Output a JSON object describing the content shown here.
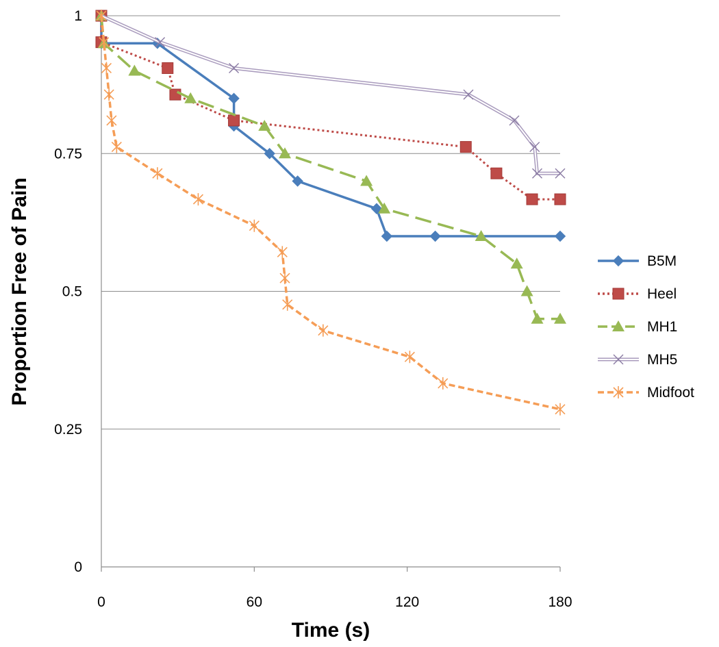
{
  "chart_data": {
    "type": "line",
    "xlabel": "Time (s)",
    "ylabel": "Proportion Free of Pain",
    "xlim": [
      0,
      180
    ],
    "ylim": [
      0,
      1
    ],
    "x_ticks": [
      "0",
      "60",
      "120",
      "180"
    ],
    "y_ticks": [
      "0",
      "0.25",
      "0.5",
      "0.75",
      "1"
    ],
    "grid": "horizontal",
    "legend_position": "right",
    "series": [
      {
        "name": "B5M",
        "color": "#4a7ebb",
        "line_style": "solid",
        "marker": "diamond",
        "points": [
          [
            0,
            1
          ],
          [
            0,
            0.95
          ],
          [
            22,
            0.95
          ],
          [
            52,
            0.85
          ],
          [
            52,
            0.8
          ],
          [
            66,
            0.75
          ],
          [
            77,
            0.7
          ],
          [
            108,
            0.65
          ],
          [
            112,
            0.6
          ],
          [
            131,
            0.6
          ],
          [
            180,
            0.6
          ]
        ]
      },
      {
        "name": "Heel",
        "color": "#be4b48",
        "line_style": "dotted",
        "marker": "square",
        "points": [
          [
            0,
            1
          ],
          [
            0,
            0.952
          ],
          [
            26,
            0.905
          ],
          [
            29,
            0.857
          ],
          [
            52,
            0.81
          ],
          [
            143,
            0.762
          ],
          [
            155,
            0.714
          ],
          [
            169,
            0.667
          ],
          [
            180,
            0.667
          ]
        ]
      },
      {
        "name": "MH1",
        "color": "#98b954",
        "line_style": "dashed",
        "marker": "triangle",
        "points": [
          [
            0,
            1
          ],
          [
            1,
            0.95
          ],
          [
            13,
            0.9
          ],
          [
            35,
            0.85
          ],
          [
            64,
            0.8
          ],
          [
            72,
            0.75
          ],
          [
            104,
            0.7
          ],
          [
            111,
            0.65
          ],
          [
            149,
            0.6
          ],
          [
            163,
            0.55
          ],
          [
            167,
            0.5
          ],
          [
            171,
            0.45
          ],
          [
            180,
            0.45
          ]
        ]
      },
      {
        "name": "MH5",
        "color": "#a99bbd",
        "line_style": "double",
        "marker": "x",
        "points": [
          [
            0,
            1
          ],
          [
            23,
            0.952
          ],
          [
            52,
            0.905
          ],
          [
            144,
            0.857
          ],
          [
            162,
            0.81
          ],
          [
            170,
            0.762
          ],
          [
            171,
            0.714
          ],
          [
            180,
            0.714
          ]
        ]
      },
      {
        "name": "Midfoot",
        "color": "#f59d56",
        "line_style": "short-dash",
        "marker": "star",
        "points": [
          [
            0,
            1
          ],
          [
            1,
            0.952
          ],
          [
            2,
            0.905
          ],
          [
            3,
            0.857
          ],
          [
            4,
            0.81
          ],
          [
            6,
            0.762
          ],
          [
            22,
            0.714
          ],
          [
            38,
            0.667
          ],
          [
            60,
            0.619
          ],
          [
            71,
            0.571
          ],
          [
            72,
            0.524
          ],
          [
            73,
            0.476
          ],
          [
            87,
            0.429
          ],
          [
            121,
            0.381
          ],
          [
            134,
            0.333
          ],
          [
            180,
            0.286
          ]
        ]
      }
    ]
  }
}
